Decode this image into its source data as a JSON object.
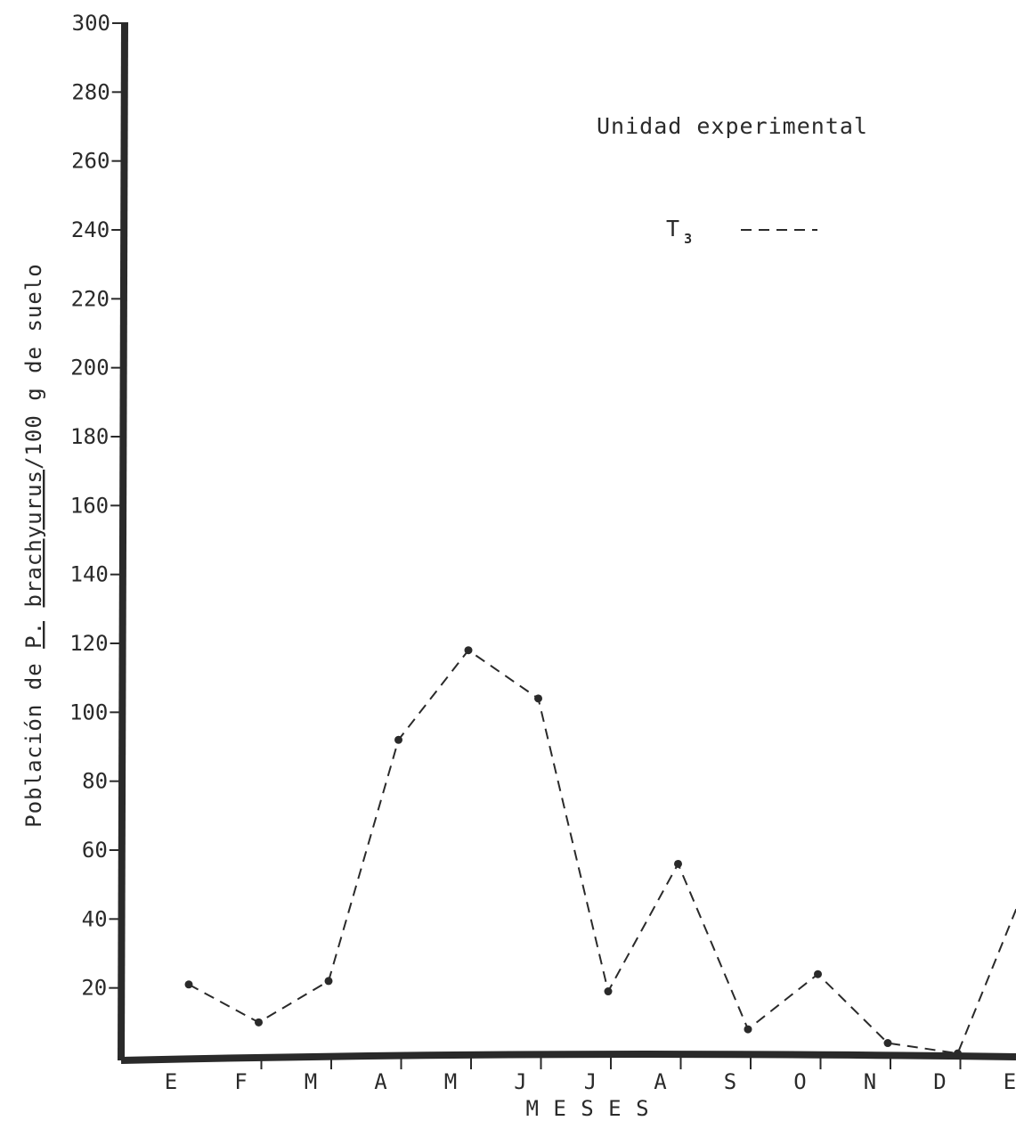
{
  "chart_data": {
    "type": "line",
    "title": "",
    "ylabel": "Población de P. brachyurus/100 g de suelo",
    "ylabel_parts": {
      "prefix": "Población de ",
      "genus": "P.",
      "species": "brachyurus",
      "suffix": "/100 g de suelo"
    },
    "xlabel": "M E S E S",
    "ylim": [
      0,
      300
    ],
    "yticks": [
      "20",
      "40",
      "60",
      "80",
      "100",
      "120",
      "140",
      "160",
      "180",
      "200",
      "220",
      "240",
      "260",
      "280",
      "300"
    ],
    "categories": [
      "E",
      "F",
      "M",
      "A",
      "M",
      "J",
      "J",
      "A",
      "S",
      "O",
      "N",
      "D",
      "E"
    ],
    "series": [
      {
        "name": "T3",
        "values": [
          21,
          10,
          22,
          92,
          118,
          104,
          19,
          56,
          8,
          24,
          4,
          1,
          51
        ],
        "style": "dashed",
        "color": "#2a2a2a"
      }
    ],
    "legend": {
      "title": "Unidad experimental",
      "entries": [
        {
          "label": "T",
          "subscript": "3",
          "style": "dashed"
        }
      ],
      "placement": "top-right"
    },
    "grid": false
  }
}
